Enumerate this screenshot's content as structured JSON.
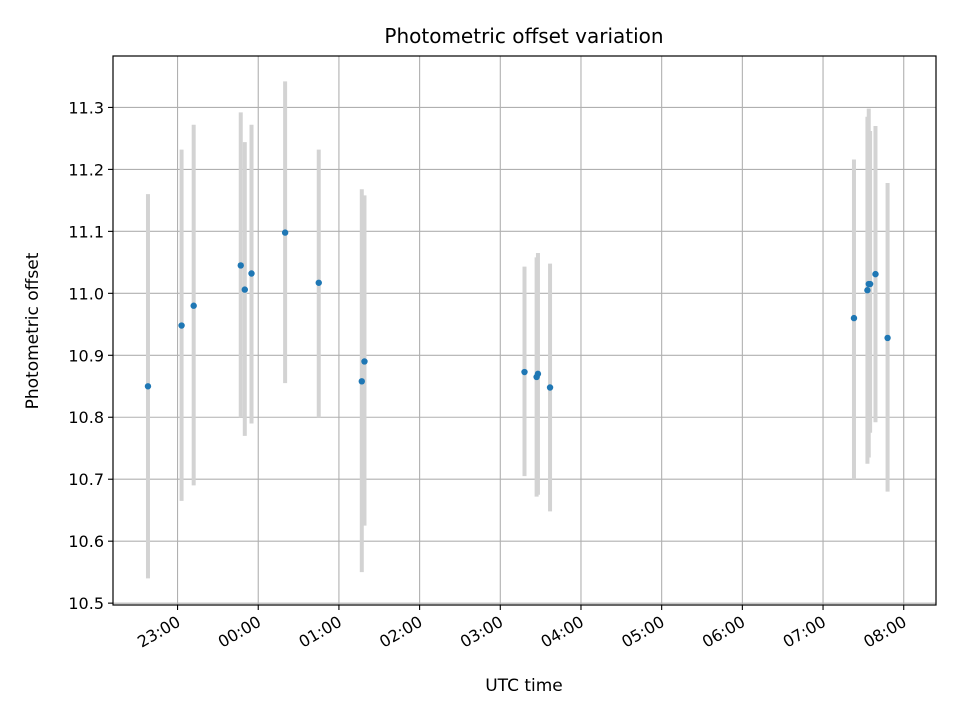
{
  "chart_data": {
    "type": "scatter",
    "title": "Photometric offset variation",
    "xlabel": "UTC time",
    "ylabel": "Photometric offset",
    "xlim": [
      "22:12",
      "08:24"
    ],
    "ylim": [
      10.497,
      11.383
    ],
    "x_ticks": [
      "23:00",
      "00:00",
      "01:00",
      "02:00",
      "03:00",
      "04:00",
      "05:00",
      "06:00",
      "07:00",
      "08:00"
    ],
    "y_ticks": [
      10.5,
      10.6,
      10.7,
      10.8,
      10.9,
      11.0,
      11.1,
      11.2,
      11.3
    ],
    "grid": true,
    "colors": {
      "points": "#1f77b4",
      "errorbars": "#d3d3d3",
      "grid": "#b0b0b0"
    },
    "points": [
      {
        "x": "22:38",
        "y": 10.85,
        "ylo": 10.54,
        "yhi": 11.16
      },
      {
        "x": "23:03",
        "y": 10.948,
        "ylo": 10.665,
        "yhi": 11.232
      },
      {
        "x": "23:12",
        "y": 10.98,
        "ylo": 10.69,
        "yhi": 11.272
      },
      {
        "x": "23:47",
        "y": 11.045,
        "ylo": 10.8,
        "yhi": 11.292
      },
      {
        "x": "23:50",
        "y": 11.006,
        "ylo": 10.77,
        "yhi": 11.244
      },
      {
        "x": "23:55",
        "y": 11.032,
        "ylo": 10.79,
        "yhi": 11.272
      },
      {
        "x": "00:20",
        "y": 11.098,
        "ylo": 10.855,
        "yhi": 11.342
      },
      {
        "x": "00:45",
        "y": 11.017,
        "ylo": 10.8,
        "yhi": 11.232
      },
      {
        "x": "01:17",
        "y": 10.858,
        "ylo": 10.55,
        "yhi": 11.168
      },
      {
        "x": "01:19",
        "y": 10.89,
        "ylo": 10.625,
        "yhi": 11.158
      },
      {
        "x": "03:18",
        "y": 10.873,
        "ylo": 10.705,
        "yhi": 11.043
      },
      {
        "x": "03:27",
        "y": 10.865,
        "ylo": 10.672,
        "yhi": 11.058
      },
      {
        "x": "03:28",
        "y": 10.87,
        "ylo": 10.675,
        "yhi": 11.065
      },
      {
        "x": "03:37",
        "y": 10.848,
        "ylo": 10.648,
        "yhi": 11.048
      },
      {
        "x": "07:23",
        "y": 10.96,
        "ylo": 10.7,
        "yhi": 11.216
      },
      {
        "x": "07:33",
        "y": 11.005,
        "ylo": 10.725,
        "yhi": 11.285
      },
      {
        "x": "07:34",
        "y": 11.015,
        "ylo": 10.735,
        "yhi": 11.298
      },
      {
        "x": "07:35",
        "y": 11.015,
        "ylo": 10.775,
        "yhi": 11.262
      },
      {
        "x": "07:39",
        "y": 11.031,
        "ylo": 10.792,
        "yhi": 11.27
      },
      {
        "x": "07:48",
        "y": 10.928,
        "ylo": 10.68,
        "yhi": 11.178
      }
    ]
  }
}
